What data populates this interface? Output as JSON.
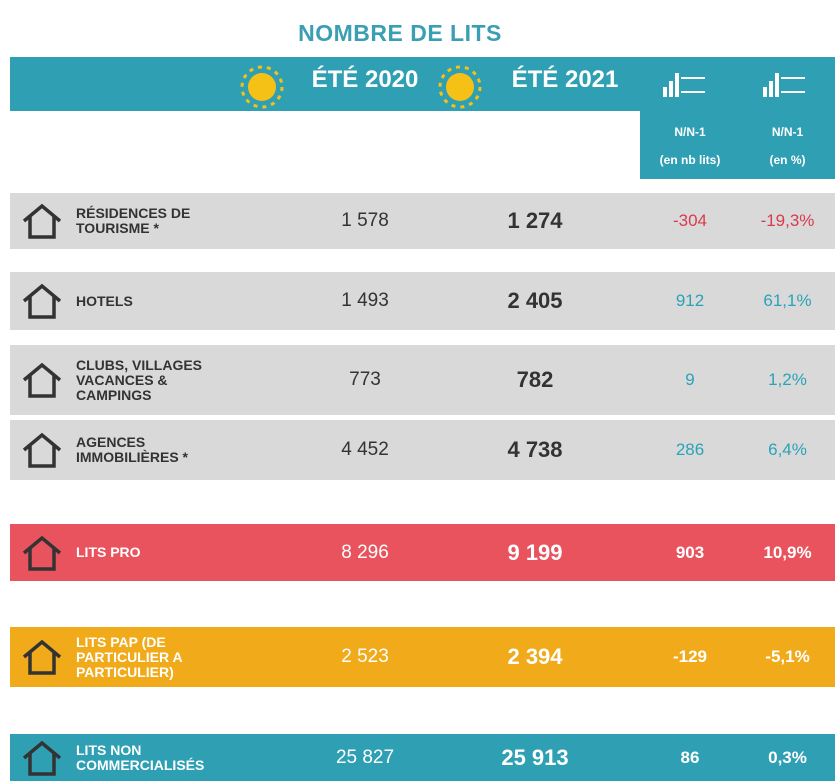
{
  "title": "NOMBRE DE LITS",
  "header": {
    "col2020": "ÉTÉ 2020",
    "col2021": "ÉTÉ 2021",
    "diff_label": "N/N-1",
    "diff_unit": "(en nb lits)",
    "pct_label": "N/N-1",
    "pct_unit": "(en %)"
  },
  "table": {
    "rows": [
      {
        "label": "RÉSIDENCES DE TOURISME *",
        "v2020": "1 578",
        "v2021": "1 274",
        "diff": "-304",
        "pct": "-19,3%",
        "color": "#d9d9d9"
      },
      {
        "label": "HOTELS",
        "v2020": "1 493",
        "v2021": "2 405",
        "diff": "912",
        "pct": "61,1%",
        "color": "#d9d9d9"
      },
      {
        "label": "CLUBS, VILLAGES VACANCES & CAMPINGS",
        "v2020": "773",
        "v2021": "782",
        "diff": "9",
        "pct": "1,2%",
        "color": "#d9d9d9"
      },
      {
        "label": "AGENCES IMMOBILIÈRES *",
        "v2020": "4 452",
        "v2021": "4 738",
        "diff": "286",
        "pct": "6,4%",
        "color": "#d9d9d9"
      },
      {
        "label": "LITS PRO",
        "v2020": "8 296",
        "v2021": "9 199",
        "diff": "903",
        "pct": "10,9%",
        "color": "#e9535e"
      },
      {
        "label": "LITS PAP (DE PARTICULIER A PARTICULIER)",
        "v2020": "2 523",
        "v2021": "2 394",
        "diff": "-129",
        "pct": "-5,1%",
        "color": "#f0aa1a"
      },
      {
        "label": "LITS NON COMMERCIALISÉS",
        "v2020": "25 827",
        "v2021": "25 913",
        "diff": "86",
        "pct": "0,3%",
        "color": "#2f9fb4"
      }
    ]
  }
}
